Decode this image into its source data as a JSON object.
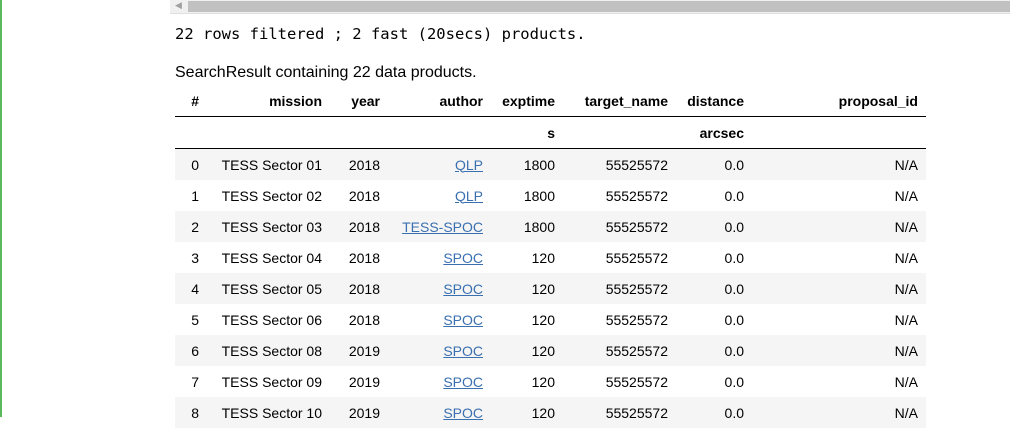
{
  "output": {
    "stdout_line": "22 rows filtered ; 2 fast (20secs) products."
  },
  "result": {
    "caption": "SearchResult containing 22 data products.",
    "columns": [
      "#",
      "mission",
      "year",
      "author",
      "exptime",
      "target_name",
      "distance",
      "proposal_id"
    ],
    "units": [
      "",
      "",
      "",
      "",
      "s",
      "",
      "arcsec",
      ""
    ],
    "rows": [
      {
        "idx": "0",
        "mission": "TESS Sector 01",
        "year": "2018",
        "author": "QLP",
        "exptime": "1800",
        "target_name": "55525572",
        "distance": "0.0",
        "proposal_id": "N/A"
      },
      {
        "idx": "1",
        "mission": "TESS Sector 02",
        "year": "2018",
        "author": "QLP",
        "exptime": "1800",
        "target_name": "55525572",
        "distance": "0.0",
        "proposal_id": "N/A"
      },
      {
        "idx": "2",
        "mission": "TESS Sector 03",
        "year": "2018",
        "author": "TESS-SPOC",
        "exptime": "1800",
        "target_name": "55525572",
        "distance": "0.0",
        "proposal_id": "N/A"
      },
      {
        "idx": "3",
        "mission": "TESS Sector 04",
        "year": "2018",
        "author": "SPOC",
        "exptime": "120",
        "target_name": "55525572",
        "distance": "0.0",
        "proposal_id": "N/A"
      },
      {
        "idx": "4",
        "mission": "TESS Sector 05",
        "year": "2018",
        "author": "SPOC",
        "exptime": "120",
        "target_name": "55525572",
        "distance": "0.0",
        "proposal_id": "N/A"
      },
      {
        "idx": "5",
        "mission": "TESS Sector 06",
        "year": "2018",
        "author": "SPOC",
        "exptime": "120",
        "target_name": "55525572",
        "distance": "0.0",
        "proposal_id": "N/A"
      },
      {
        "idx": "6",
        "mission": "TESS Sector 08",
        "year": "2019",
        "author": "SPOC",
        "exptime": "120",
        "target_name": "55525572",
        "distance": "0.0",
        "proposal_id": "N/A"
      },
      {
        "idx": "7",
        "mission": "TESS Sector 09",
        "year": "2019",
        "author": "SPOC",
        "exptime": "120",
        "target_name": "55525572",
        "distance": "0.0",
        "proposal_id": "N/A"
      },
      {
        "idx": "8",
        "mission": "TESS Sector 10",
        "year": "2019",
        "author": "SPOC",
        "exptime": "120",
        "target_name": "55525572",
        "distance": "0.0",
        "proposal_id": "N/A"
      }
    ]
  }
}
